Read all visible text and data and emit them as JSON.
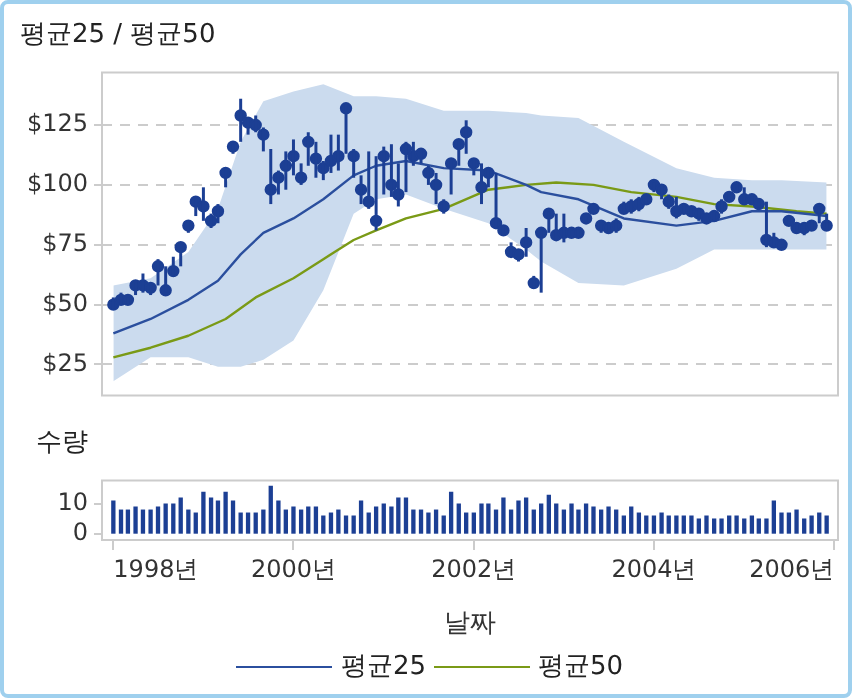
{
  "chart_data": [
    {
      "type": "line",
      "title": "평균25 / 평균50",
      "x": [
        "1998-01",
        "1998-02",
        "1998-03",
        "1998-04",
        "1998-05",
        "1998-06",
        "1998-07",
        "1998-08",
        "1998-09",
        "1998-10",
        "1998-11",
        "1998-12",
        "1999-01",
        "1999-02",
        "1999-03",
        "1999-04",
        "1999-05",
        "1999-06",
        "1999-07",
        "1999-08",
        "1999-09",
        "1999-10",
        "1999-11",
        "1999-12",
        "2000-01",
        "2000-02",
        "2000-03",
        "2000-04",
        "2000-05",
        "2000-06",
        "2000-07",
        "2000-08",
        "2000-09",
        "2000-10",
        "2000-11",
        "2000-12",
        "2001-01",
        "2001-02",
        "2001-03",
        "2001-04",
        "2001-05",
        "2001-06",
        "2001-07",
        "2001-08",
        "2001-09",
        "2001-10",
        "2001-11",
        "2001-12",
        "2002-01",
        "2002-02",
        "2002-03",
        "2002-04",
        "2002-05",
        "2002-06",
        "2002-07",
        "2002-08",
        "2002-09",
        "2002-10",
        "2002-11",
        "2002-12",
        "2003-01",
        "2003-02",
        "2003-03",
        "2003-04",
        "2003-05",
        "2003-06",
        "2003-07",
        "2003-08",
        "2003-09",
        "2003-10",
        "2003-11",
        "2003-12",
        "2004-01",
        "2004-02",
        "2004-03",
        "2004-04",
        "2004-05",
        "2004-06",
        "2004-07",
        "2004-08",
        "2004-09",
        "2004-10",
        "2004-11",
        "2004-12",
        "2005-01",
        "2005-02",
        "2005-03",
        "2005-04",
        "2005-05",
        "2005-06",
        "2005-07",
        "2005-08",
        "2005-09",
        "2005-10",
        "2005-11",
        "2005-12"
      ],
      "series": [
        {
          "type": "scatter",
          "color": "#1c3f94",
          "marker": "circle",
          "values": [
            50,
            52,
            52,
            58,
            58,
            57,
            66,
            56,
            64,
            74,
            83,
            93,
            91,
            85,
            89,
            105,
            116,
            129,
            126,
            125,
            121,
            98,
            103,
            108,
            112,
            103,
            118,
            111,
            107,
            110,
            112,
            132,
            112,
            98,
            93,
            85,
            112,
            100,
            96,
            115,
            112,
            113,
            105,
            100,
            91,
            109,
            117,
            122,
            109,
            99,
            105,
            84,
            81,
            72,
            71,
            76,
            59,
            80,
            88,
            79,
            80,
            80,
            80,
            86,
            90,
            83,
            82,
            83,
            90,
            91,
            92,
            94,
            100,
            98,
            93,
            89,
            90,
            89,
            88,
            86,
            87,
            91,
            95,
            99,
            94,
            94,
            92,
            77,
            76,
            75,
            85,
            82,
            82,
            83,
            90,
            83
          ],
          "errors": [
            [
              48,
              53
            ],
            [
              50,
              55
            ],
            [
              50,
              53
            ],
            [
              54,
              60
            ],
            [
              55,
              63
            ],
            [
              54,
              59
            ],
            [
              58,
              69
            ],
            [
              55,
              66
            ],
            [
              62,
              70
            ],
            [
              66,
              75
            ],
            [
              80,
              85
            ],
            [
              87,
              95
            ],
            [
              85,
              99
            ],
            [
              82,
              88
            ],
            [
              84,
              92
            ],
            [
              99,
              107
            ],
            [
              113,
              117
            ],
            [
              118,
              136
            ],
            [
              121,
              128
            ],
            [
              122,
              129
            ],
            [
              114,
              124
            ],
            [
              92,
              115
            ],
            [
              96,
              106
            ],
            [
              98,
              114
            ],
            [
              104,
              119
            ],
            [
              100,
              109
            ],
            [
              108,
              122
            ],
            [
              103,
              118
            ],
            [
              102,
              110
            ],
            [
              105,
              121
            ],
            [
              106,
              121
            ],
            [
              113,
              134
            ],
            [
              103,
              115
            ],
            [
              92,
              104
            ],
            [
              90,
              114
            ],
            [
              81,
              112
            ],
            [
              96,
              116
            ],
            [
              95,
              117
            ],
            [
              91,
              109
            ],
            [
              97,
              118
            ],
            [
              108,
              118
            ],
            [
              109,
              115
            ],
            [
              100,
              108
            ],
            [
              92,
              105
            ],
            [
              88,
              94
            ],
            [
              96,
              111
            ],
            [
              108,
              119
            ],
            [
              113,
              127
            ],
            [
              104,
              111
            ],
            [
              92,
              109
            ],
            [
              99,
              107
            ],
            [
              82,
              105
            ],
            [
              79,
              83
            ],
            [
              70,
              76
            ],
            [
              68,
              73
            ],
            [
              70,
              82
            ],
            [
              57,
              62
            ],
            [
              55,
              81
            ],
            [
              80,
              89
            ],
            [
              77,
              88
            ],
            [
              76,
              88
            ],
            [
              78,
              81
            ],
            [
              78,
              82
            ],
            [
              84,
              87
            ],
            [
              88,
              92
            ],
            [
              80,
              85
            ],
            [
              80,
              84
            ],
            [
              80,
              86
            ],
            [
              88,
              93
            ],
            [
              88,
              94
            ],
            [
              89,
              95
            ],
            [
              92,
              95
            ],
            [
              97,
              101
            ],
            [
              94,
              100
            ],
            [
              90,
              96
            ],
            [
              86,
              95
            ],
            [
              88,
              92
            ],
            [
              87,
              91
            ],
            [
              85,
              90
            ],
            [
              84,
              88
            ],
            [
              85,
              89
            ],
            [
              88,
              94
            ],
            [
              93,
              97
            ],
            [
              97,
              101
            ],
            [
              92,
              99
            ],
            [
              92,
              96
            ],
            [
              90,
              94
            ],
            [
              74,
              93
            ],
            [
              74,
              80
            ],
            [
              74,
              77
            ],
            [
              83,
              87
            ],
            [
              80,
              84
            ],
            [
              79,
              84
            ],
            [
              81,
              85
            ],
            [
              84,
              91
            ],
            [
              81,
              88
            ]
          ]
        },
        {
          "name": "평균25",
          "color": "#2b4f9e",
          "x": [
            "1998-01",
            "1998-06",
            "1998-11",
            "1999-03",
            "1999-06",
            "1999-09",
            "2000-01",
            "2000-05",
            "2000-09",
            "2000-12",
            "2001-04",
            "2001-09",
            "2002-03",
            "2002-08",
            "2002-10",
            "2003-03",
            "2003-09",
            "2004-04",
            "2004-09",
            "2005-02",
            "2005-06",
            "2005-12"
          ],
          "values": [
            38,
            44,
            52,
            60,
            71,
            80,
            86,
            94,
            104,
            108,
            110,
            107,
            106,
            100,
            97,
            94,
            86,
            83,
            85,
            89,
            89,
            87
          ],
          "lower": [
            18,
            28,
            28,
            24,
            24,
            27,
            35,
            56,
            88,
            94,
            96,
            90,
            84,
            73,
            68,
            59,
            58,
            65,
            73,
            73,
            73,
            73
          ],
          "upper": [
            58,
            61,
            72,
            90,
            118,
            135,
            139,
            142,
            137,
            137,
            136,
            131,
            131,
            130,
            129,
            128,
            118,
            107,
            103,
            102,
            102,
            101
          ]
        },
        {
          "name": "평균50",
          "color": "#7a9a16",
          "x": [
            "1998-01",
            "1998-06",
            "1998-11",
            "1999-04",
            "1999-08",
            "2000-01",
            "2000-05",
            "2000-09",
            "2000-12",
            "2001-04",
            "2001-09",
            "2002-03",
            "2002-08",
            "2002-12",
            "2003-05",
            "2003-10",
            "2004-04",
            "2004-09",
            "2005-02",
            "2005-08",
            "2005-12"
          ],
          "values": [
            28,
            32,
            37,
            44,
            53,
            61,
            69,
            77,
            81,
            86,
            90,
            98,
            100,
            101,
            100,
            97,
            95,
            92,
            91,
            89,
            88
          ]
        }
      ],
      "xlim": [
        "1997-11-16",
        "2006-01-16"
      ],
      "ylim": [
        12,
        147
      ],
      "yticks": [
        {
          "value": 25,
          "label": "$25"
        },
        {
          "value": 50,
          "label": "$50"
        },
        {
          "value": 75,
          "label": "$75"
        },
        {
          "value": 100,
          "label": "$100"
        },
        {
          "value": 125,
          "label": "$125"
        }
      ],
      "grid": "y",
      "legend": "bottom",
      "tick_labels": "y"
    },
    {
      "type": "bar",
      "ylabel": "수량",
      "xlabel": "날짜",
      "color": "#1c3f94",
      "x": [
        "1998-01",
        "1998-02",
        "1998-03",
        "1998-04",
        "1998-05",
        "1998-06",
        "1998-07",
        "1998-08",
        "1998-09",
        "1998-10",
        "1998-11",
        "1998-12",
        "1999-01",
        "1999-02",
        "1999-03",
        "1999-04",
        "1999-05",
        "1999-06",
        "1999-07",
        "1999-08",
        "1999-09",
        "1999-10",
        "1999-11",
        "1999-12",
        "2000-01",
        "2000-02",
        "2000-03",
        "2000-04",
        "2000-05",
        "2000-06",
        "2000-07",
        "2000-08",
        "2000-09",
        "2000-10",
        "2000-11",
        "2000-12",
        "2001-01",
        "2001-02",
        "2001-03",
        "2001-04",
        "2001-05",
        "2001-06",
        "2001-07",
        "2001-08",
        "2001-09",
        "2001-10",
        "2001-11",
        "2001-12",
        "2002-01",
        "2002-02",
        "2002-03",
        "2002-04",
        "2002-05",
        "2002-06",
        "2002-07",
        "2002-08",
        "2002-09",
        "2002-10",
        "2002-11",
        "2002-12",
        "2003-01",
        "2003-02",
        "2003-03",
        "2003-04",
        "2003-05",
        "2003-06",
        "2003-07",
        "2003-08",
        "2003-09",
        "2003-10",
        "2003-11",
        "2003-12",
        "2004-01",
        "2004-02",
        "2004-03",
        "2004-04",
        "2004-05",
        "2004-06",
        "2004-07",
        "2004-08",
        "2004-09",
        "2004-10",
        "2004-11",
        "2004-12",
        "2005-01",
        "2005-02",
        "2005-03",
        "2005-04",
        "2005-05",
        "2005-06",
        "2005-07",
        "2005-08",
        "2005-09",
        "2005-10",
        "2005-11",
        "2005-12"
      ],
      "values": [
        11,
        8,
        8,
        9,
        8,
        8,
        9,
        10,
        10,
        12,
        8,
        7,
        14,
        12,
        11,
        14,
        11,
        7,
        7,
        7,
        8,
        16,
        11,
        8,
        9,
        8,
        9,
        9,
        6,
        7,
        8,
        6,
        6,
        11,
        7,
        9,
        10,
        9,
        12,
        12,
        8,
        8,
        7,
        8,
        6,
        14,
        10,
        7,
        7,
        10,
        10,
        8,
        12,
        8,
        11,
        12,
        8,
        10,
        13,
        10,
        8,
        10,
        8,
        10,
        9,
        8,
        9,
        8,
        6,
        9,
        7,
        6,
        6,
        7,
        6,
        6,
        6,
        6,
        5,
        6,
        5,
        5,
        6,
        6,
        5,
        6,
        5,
        5,
        11,
        7,
        7,
        8,
        5,
        6,
        7,
        6
      ],
      "xlim": [
        "1997-11-16",
        "2006-01-16"
      ],
      "xticks": [
        {
          "value": "1998",
          "label": "1998년"
        },
        {
          "value": "2000",
          "label": "2000년"
        },
        {
          "value": "2002",
          "label": "2002년"
        },
        {
          "value": "2004",
          "label": "2004년"
        },
        {
          "value": "2006",
          "label": "2006년"
        }
      ],
      "ylim": [
        -2,
        18
      ],
      "yticks": [
        0,
        10
      ]
    }
  ]
}
